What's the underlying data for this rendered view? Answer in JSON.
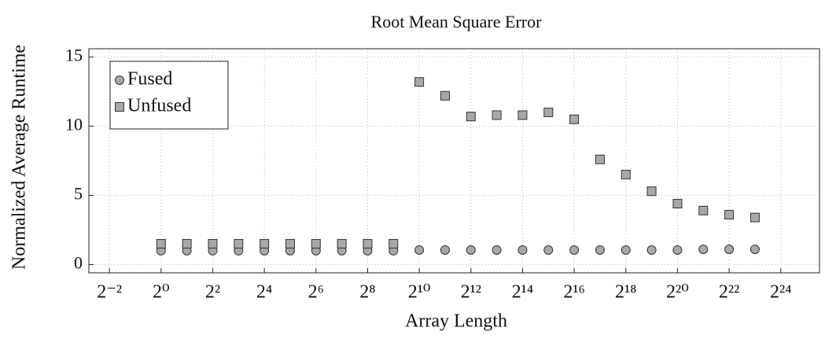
{
  "chart_data": {
    "type": "scatter",
    "title": "Root Mean Square Error",
    "xlabel": "Array Length",
    "ylabel": "Normalized Average Runtime",
    "xscale": "log",
    "x": [
      1,
      2,
      4,
      8,
      16,
      32,
      64,
      128,
      256,
      512,
      1024,
      2048,
      4096,
      8192,
      16384,
      32768,
      65536,
      131072,
      262144,
      524288,
      1048576,
      2097152,
      4194304,
      8388608
    ],
    "series": [
      {
        "name": "Fused",
        "color": "#a8a8a8",
        "marker": "circle",
        "values": [
          1.0,
          1.0,
          1.0,
          1.0,
          1.0,
          1.0,
          1.0,
          1.0,
          1.0,
          1.0,
          1.05,
          1.05,
          1.05,
          1.05,
          1.05,
          1.05,
          1.05,
          1.05,
          1.05,
          1.05,
          1.05,
          1.1,
          1.1,
          1.1
        ]
      },
      {
        "name": "Unfused",
        "color": "#a8a8a8",
        "marker": "square",
        "values": [
          1.5,
          1.5,
          1.5,
          1.5,
          1.5,
          1.5,
          1.5,
          1.5,
          1.5,
          1.5,
          13.2,
          12.2,
          10.7,
          10.8,
          10.8,
          11.0,
          10.5,
          7.6,
          6.5,
          5.3,
          4.4,
          3.9,
          3.6,
          3.4
        ]
      }
    ],
    "xlim": [
      0.144,
      47453133
    ],
    "xticks": [
      {
        "value": 0.25,
        "label": "2⁻²"
      },
      {
        "value": 1,
        "label": "2⁰"
      },
      {
        "value": 4,
        "label": "2²"
      },
      {
        "value": 16,
        "label": "2⁴"
      },
      {
        "value": 64,
        "label": "2⁶"
      },
      {
        "value": 256,
        "label": "2⁸"
      },
      {
        "value": 1024,
        "label": "2¹⁰"
      },
      {
        "value": 4096,
        "label": "2¹²"
      },
      {
        "value": 16384,
        "label": "2¹⁴"
      },
      {
        "value": 65536,
        "label": "2¹⁶"
      },
      {
        "value": 262144,
        "label": "2¹⁸"
      },
      {
        "value": 1048576,
        "label": "2²⁰"
      },
      {
        "value": 4194304,
        "label": "2²²"
      },
      {
        "value": 16777216,
        "label": "2²⁴"
      }
    ],
    "ylim": [
      -0.6,
      15.6
    ],
    "yticks": [
      0,
      5,
      10,
      15
    ],
    "grid": true,
    "legend": "upper left"
  }
}
